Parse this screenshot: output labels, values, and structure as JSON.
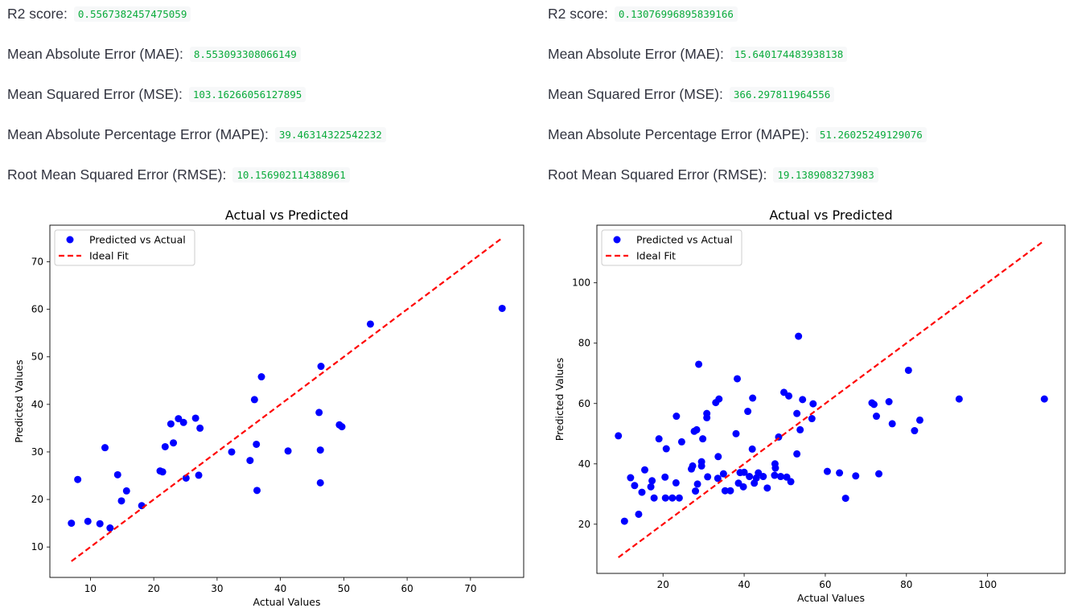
{
  "panels": [
    {
      "metrics": [
        {
          "label": "R2 score:",
          "value": "0.5567382457475059"
        },
        {
          "label": "Mean Absolute Error (MAE):",
          "value": "8.553093308066149"
        },
        {
          "label": "Mean Squared Error (MSE):",
          "value": "103.16266056127895"
        },
        {
          "label": "Mean Absolute Percentage Error (MAPE):",
          "value": "39.46314322542232"
        },
        {
          "label": "Root Mean Squared Error (RMSE):",
          "value": "10.156902114388961"
        }
      ]
    },
    {
      "metrics": [
        {
          "label": "R2 score:",
          "value": "0.13076996895839166"
        },
        {
          "label": "Mean Absolute Error (MAE):",
          "value": "15.640174483938138"
        },
        {
          "label": "Mean Squared Error (MSE):",
          "value": "366.297811964556"
        },
        {
          "label": "Mean Absolute Percentage Error (MAPE):",
          "value": "51.26025249129076"
        },
        {
          "label": "Root Mean Squared Error (RMSE):",
          "value": "19.1389083273983"
        }
      ]
    }
  ],
  "chart_data": [
    {
      "type": "scatter",
      "title": "Actual vs Predicted",
      "xlabel": "Actual Values",
      "ylabel": "Predicted Values",
      "xlim": [
        3.6,
        78.4
      ],
      "ylim": [
        3.6,
        77.7
      ],
      "xticks": [
        10,
        20,
        30,
        40,
        50,
        60,
        70
      ],
      "yticks": [
        10,
        20,
        30,
        40,
        50,
        60,
        70
      ],
      "legend": [
        "Predicted vs Actual",
        "Ideal Fit"
      ],
      "legend_position": "top-left",
      "marker_color": "#0000ff",
      "line_color": "#ff0000",
      "ideal_fit": [
        [
          7,
          7
        ],
        [
          75,
          75
        ]
      ],
      "points": [
        [
          7,
          15
        ],
        [
          8,
          24.2
        ],
        [
          9.6,
          15.4
        ],
        [
          11.5,
          14.9
        ],
        [
          12.3,
          30.9
        ],
        [
          13.1,
          14
        ],
        [
          14.3,
          25.2
        ],
        [
          14.9,
          19.7
        ],
        [
          15.7,
          21.8
        ],
        [
          18.1,
          18.7
        ],
        [
          21,
          26
        ],
        [
          21.4,
          25.8
        ],
        [
          21.8,
          31.1
        ],
        [
          22.7,
          35.9
        ],
        [
          23.1,
          31.9
        ],
        [
          23.9,
          37
        ],
        [
          24.7,
          36.2
        ],
        [
          25.1,
          24.5
        ],
        [
          26.6,
          37.1
        ],
        [
          27.1,
          25.1
        ],
        [
          27.3,
          35
        ],
        [
          32.3,
          30
        ],
        [
          35.2,
          28.2
        ],
        [
          35.9,
          41
        ],
        [
          36.2,
          31.6
        ],
        [
          36.3,
          21.9
        ],
        [
          37,
          45.8
        ],
        [
          41.2,
          30.2
        ],
        [
          46.1,
          38.3
        ],
        [
          46.3,
          30.4
        ],
        [
          46.4,
          48
        ],
        [
          46.3,
          23.5
        ],
        [
          49.3,
          35.7
        ],
        [
          49.7,
          35.3
        ],
        [
          54.2,
          56.9
        ],
        [
          75,
          60.2
        ]
      ]
    },
    {
      "type": "scatter",
      "title": "Actual vs Predicted",
      "xlabel": "Actual Values",
      "ylabel": "Predicted Values",
      "xlim": [
        3.7,
        119.1
      ],
      "ylim": [
        3.7,
        119.1
      ],
      "xticks": [
        20,
        40,
        60,
        80,
        100
      ],
      "yticks": [
        20,
        40,
        60,
        80,
        100
      ],
      "legend": [
        "Predicted vs Actual",
        "Ideal Fit"
      ],
      "legend_position": "top-left",
      "marker_color": "#0000ff",
      "line_color": "#ff0000",
      "ideal_fit": [
        [
          9,
          9
        ],
        [
          114,
          114
        ]
      ],
      "points": [
        [
          9,
          49.3
        ],
        [
          10.5,
          21
        ],
        [
          12,
          35.4
        ],
        [
          13,
          32.8
        ],
        [
          14,
          23.3
        ],
        [
          14.8,
          30.6
        ],
        [
          15.5,
          38
        ],
        [
          17,
          32.4
        ],
        [
          17.3,
          34.4
        ],
        [
          17.8,
          28.7
        ],
        [
          19,
          48.3
        ],
        [
          20.5,
          35.6
        ],
        [
          20.6,
          28.7
        ],
        [
          20.8,
          45
        ],
        [
          22.3,
          28.7
        ],
        [
          23.2,
          33.7
        ],
        [
          23.3,
          55.8
        ],
        [
          24,
          28.7
        ],
        [
          24.6,
          47.3
        ],
        [
          27,
          38.3
        ],
        [
          27.3,
          39.3
        ],
        [
          27.7,
          50.8
        ],
        [
          28,
          31
        ],
        [
          28.3,
          51.3
        ],
        [
          28.5,
          33.3
        ],
        [
          28.8,
          73
        ],
        [
          29.5,
          40.7
        ],
        [
          29.5,
          39.3
        ],
        [
          29.8,
          48.3
        ],
        [
          30.8,
          55.3
        ],
        [
          30.8,
          56.7
        ],
        [
          31,
          35.7
        ],
        [
          33,
          60.3
        ],
        [
          33.5,
          35.2
        ],
        [
          33.6,
          42.4
        ],
        [
          33.8,
          61.5
        ],
        [
          34.9,
          36.7
        ],
        [
          35.3,
          31.1
        ],
        [
          36.6,
          31.1
        ],
        [
          38,
          50
        ],
        [
          38.3,
          68.2
        ],
        [
          38.6,
          33.6
        ],
        [
          39,
          37.1
        ],
        [
          39.8,
          32.4
        ],
        [
          40,
          37.2
        ],
        [
          40.9,
          57.4
        ],
        [
          41.3,
          35.8
        ],
        [
          42,
          44.9
        ],
        [
          42.1,
          61.8
        ],
        [
          42.5,
          33.6
        ],
        [
          43,
          35.3
        ],
        [
          43.5,
          37
        ],
        [
          44.7,
          35.8
        ],
        [
          45.7,
          32
        ],
        [
          47.5,
          36.2
        ],
        [
          47.6,
          40
        ],
        [
          47.7,
          38.6
        ],
        [
          48.5,
          48.9
        ],
        [
          49,
          35.8
        ],
        [
          49.8,
          63.7
        ],
        [
          50.5,
          35.6
        ],
        [
          51,
          62.5
        ],
        [
          51.5,
          34.1
        ],
        [
          53,
          56.7
        ],
        [
          53,
          43.3
        ],
        [
          53.4,
          82.3
        ],
        [
          53.8,
          51.3
        ],
        [
          54.4,
          61.3
        ],
        [
          56.7,
          55
        ],
        [
          57,
          59.9
        ],
        [
          60.5,
          37.5
        ],
        [
          63.5,
          37
        ],
        [
          65,
          28.6
        ],
        [
          67.5,
          36
        ],
        [
          71.5,
          60.2
        ],
        [
          72,
          59.7
        ],
        [
          72.6,
          55.8
        ],
        [
          73.2,
          36.7
        ],
        [
          75.7,
          60.6
        ],
        [
          76.5,
          53.3
        ],
        [
          80.5,
          71
        ],
        [
          82,
          51
        ],
        [
          83.3,
          54.5
        ],
        [
          93,
          61.5
        ],
        [
          114,
          61.5
        ]
      ]
    }
  ]
}
